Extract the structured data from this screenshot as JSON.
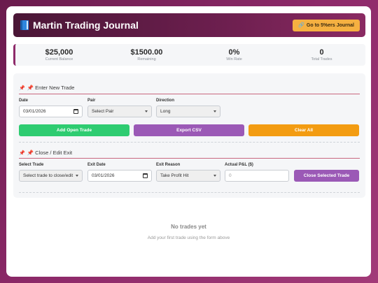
{
  "header": {
    "title": "Martin Trading Journal",
    "journal_button": "Go to 5%ers Journal"
  },
  "stats": [
    {
      "value": "$25,000",
      "label": "Current Balance"
    },
    {
      "value": "$1500.00",
      "label": "Remaining"
    },
    {
      "value": "0%",
      "label": "Win Rate"
    },
    {
      "value": "0",
      "label": "Total Trades"
    }
  ],
  "new_trade": {
    "title": "📌 Enter New Trade",
    "date_label": "Date",
    "date_value": "03/01/2026",
    "pair_label": "Pair",
    "pair_value": "Select Pair",
    "direction_label": "Direction",
    "direction_value": "Long",
    "add_button": "Add Open Trade",
    "export_button": "Export CSV",
    "clear_button": "Clear All"
  },
  "close_trade": {
    "title": "📌 Close / Edit Exit",
    "select_label": "Select Trade",
    "select_value": "Select trade to close/edit",
    "exit_date_label": "Exit Date",
    "exit_date_value": "03/01/2026",
    "exit_reason_label": "Exit Reason",
    "exit_reason_value": "Take Profit Hit",
    "pnl_label": "Actual P&L ($)",
    "pnl_placeholder": "0",
    "close_button": "Close Selected Trade"
  },
  "empty_state": {
    "title": "No trades yet",
    "subtitle": "Add your first trade using the form above"
  },
  "colors": {
    "accent": "#8e2a6a",
    "green": "#2ecc71",
    "purple": "#9b59b6",
    "orange": "#f39c12",
    "gold": "#f5b041"
  }
}
